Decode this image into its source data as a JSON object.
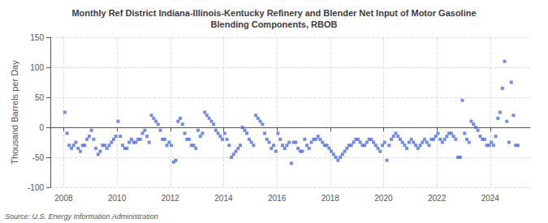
{
  "chart_data": {
    "type": "scatter",
    "title": "Monthly Ref District Indiana-Illinois-Kentucky Refinery and Blender Net Input of Motor Gasoline\nBlending Components, RBOB",
    "ylabel": "Thousand Barrels per Day",
    "annotation": "Source: U.S. Energy Information Administration",
    "marker": "square",
    "grid": true,
    "xlim": [
      2007.5,
      2025.5
    ],
    "xticks": [
      2008,
      2010,
      2012,
      2014,
      2016,
      2018,
      2020,
      2022,
      2024
    ],
    "ylim": [
      -100,
      150
    ],
    "yticks": [
      -100,
      -50,
      0,
      50,
      100,
      150
    ],
    "x": [
      2008.042,
      2008.125,
      2008.208,
      2008.292,
      2008.375,
      2008.458,
      2008.542,
      2008.625,
      2008.708,
      2008.792,
      2008.875,
      2008.958,
      2009.042,
      2009.125,
      2009.208,
      2009.292,
      2009.375,
      2009.458,
      2009.542,
      2009.625,
      2009.708,
      2009.792,
      2009.875,
      2009.958,
      2010.042,
      2010.125,
      2010.208,
      2010.292,
      2010.375,
      2010.458,
      2010.542,
      2010.625,
      2010.708,
      2010.792,
      2010.875,
      2010.958,
      2011.042,
      2011.125,
      2011.208,
      2011.292,
      2011.375,
      2011.458,
      2011.542,
      2011.625,
      2011.708,
      2011.792,
      2011.875,
      2011.958,
      2012.042,
      2012.125,
      2012.208,
      2012.292,
      2012.375,
      2012.458,
      2012.542,
      2012.625,
      2012.708,
      2012.792,
      2012.875,
      2012.958,
      2013.042,
      2013.125,
      2013.208,
      2013.292,
      2013.375,
      2013.458,
      2013.542,
      2013.625,
      2013.708,
      2013.792,
      2013.875,
      2013.958,
      2014.042,
      2014.125,
      2014.208,
      2014.292,
      2014.375,
      2014.458,
      2014.542,
      2014.625,
      2014.708,
      2014.792,
      2014.875,
      2014.958,
      2015.042,
      2015.125,
      2015.208,
      2015.292,
      2015.375,
      2015.458,
      2015.542,
      2015.625,
      2015.708,
      2015.792,
      2015.875,
      2015.958,
      2016.042,
      2016.125,
      2016.208,
      2016.292,
      2016.375,
      2016.458,
      2016.542,
      2016.625,
      2016.708,
      2016.792,
      2016.875,
      2016.958,
      2017.042,
      2017.125,
      2017.208,
      2017.292,
      2017.375,
      2017.458,
      2017.542,
      2017.625,
      2017.708,
      2017.792,
      2017.875,
      2017.958,
      2018.042,
      2018.125,
      2018.208,
      2018.292,
      2018.375,
      2018.458,
      2018.542,
      2018.625,
      2018.708,
      2018.792,
      2018.875,
      2018.958,
      2019.042,
      2019.125,
      2019.208,
      2019.292,
      2019.375,
      2019.458,
      2019.542,
      2019.625,
      2019.708,
      2019.792,
      2019.875,
      2019.958,
      2020.042,
      2020.125,
      2020.208,
      2020.292,
      2020.375,
      2020.458,
      2020.542,
      2020.625,
      2020.708,
      2020.792,
      2020.875,
      2020.958,
      2021.042,
      2021.125,
      2021.208,
      2021.292,
      2021.375,
      2021.458,
      2021.542,
      2021.625,
      2021.708,
      2021.792,
      2021.875,
      2021.958,
      2022.042,
      2022.125,
      2022.208,
      2022.292,
      2022.375,
      2022.458,
      2022.542,
      2022.625,
      2022.708,
      2022.792,
      2022.875,
      2022.958,
      2023.042,
      2023.125,
      2023.208,
      2023.292,
      2023.375,
      2023.458,
      2023.542,
      2023.625,
      2023.708,
      2023.792,
      2023.875,
      2023.958,
      2024.042,
      2024.125,
      2024.208,
      2024.292,
      2024.375,
      2024.458,
      2024.542,
      2024.625,
      2024.708,
      2024.792,
      2024.875,
      2024.958,
      2025.042
    ],
    "values": [
      25,
      -10,
      -30,
      -35,
      -30,
      -25,
      -35,
      -40,
      -30,
      -30,
      -20,
      -15,
      -5,
      -20,
      -35,
      -45,
      -40,
      -30,
      -30,
      -35,
      -30,
      -25,
      -20,
      -15,
      10,
      -15,
      -30,
      -35,
      -35,
      -25,
      -20,
      -25,
      -25,
      -20,
      -20,
      -10,
      -5,
      -15,
      -25,
      20,
      15,
      10,
      5,
      -5,
      -20,
      -20,
      -30,
      -25,
      -30,
      -58,
      -55,
      10,
      15,
      5,
      -10,
      -20,
      -20,
      -30,
      -30,
      -35,
      -5,
      -15,
      -10,
      25,
      20,
      15,
      10,
      5,
      -5,
      -10,
      -15,
      -20,
      -10,
      -20,
      -30,
      -50,
      -45,
      -40,
      -35,
      -30,
      0,
      -5,
      -10,
      -20,
      -25,
      -30,
      20,
      15,
      10,
      5,
      -10,
      -20,
      -25,
      -35,
      -30,
      -40,
      -10,
      -20,
      -30,
      -35,
      -30,
      -25,
      -60,
      -25,
      -25,
      -35,
      -40,
      -40,
      -20,
      -30,
      -35,
      -25,
      -20,
      -20,
      -15,
      -20,
      -25,
      -30,
      -30,
      -35,
      -40,
      -45,
      -50,
      -55,
      -50,
      -45,
      -40,
      -35,
      -30,
      -30,
      -25,
      -20,
      -20,
      -25,
      -30,
      -30,
      -25,
      -20,
      -20,
      -25,
      -30,
      -35,
      -40,
      -30,
      -25,
      -55,
      -30,
      -20,
      -15,
      -10,
      -15,
      -20,
      -25,
      -30,
      -35,
      -25,
      -20,
      -25,
      -30,
      -35,
      -30,
      -25,
      -20,
      -25,
      -30,
      -20,
      -20,
      -15,
      -10,
      -20,
      -25,
      -20,
      -15,
      -10,
      -10,
      -15,
      -20,
      -50,
      -50,
      45,
      -10,
      -20,
      -25,
      10,
      5,
      0,
      -5,
      -15,
      -20,
      -20,
      -30,
      -30,
      -25,
      -30,
      -15,
      15,
      25,
      65,
      110,
      10,
      -25,
      75,
      20,
      -30,
      -30
    ]
  }
}
